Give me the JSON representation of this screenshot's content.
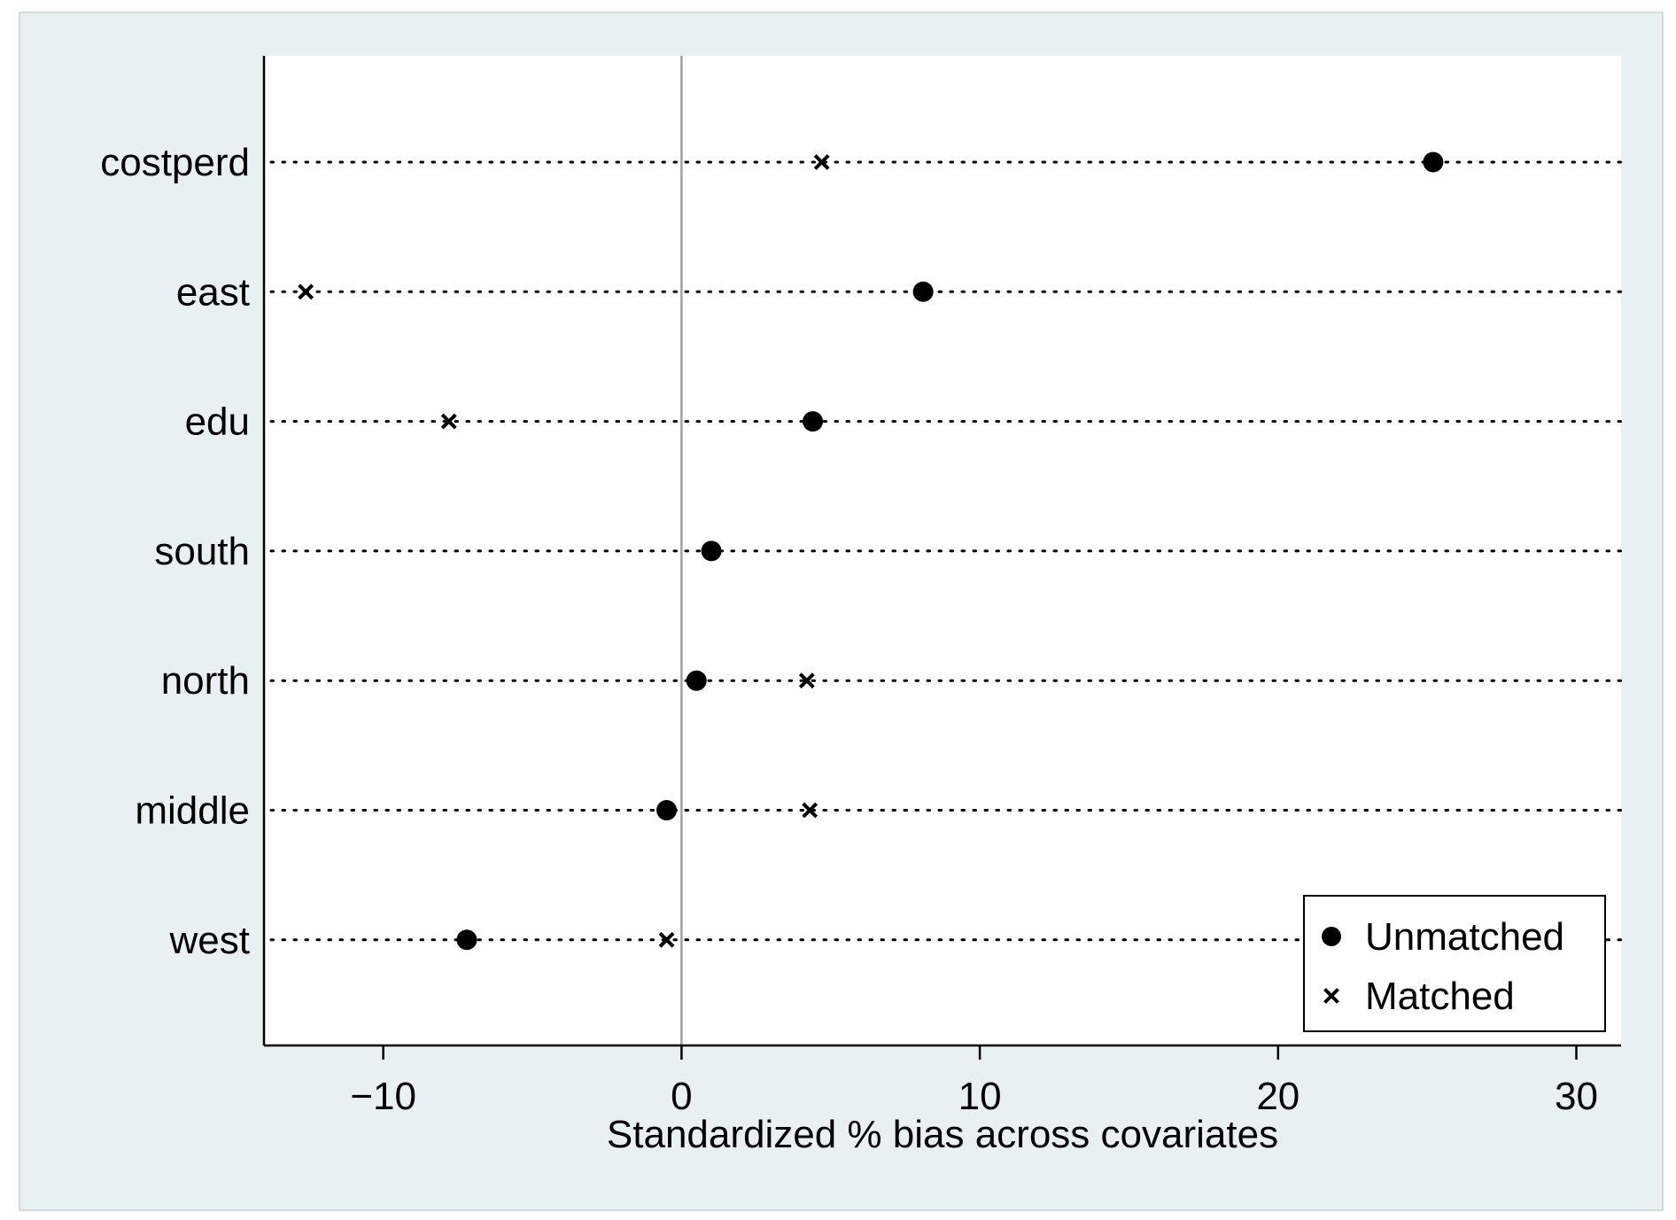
{
  "colors": {
    "frame_background": "#e9f0f1",
    "plot_background": "#ffffff",
    "marker": "#000000",
    "reference_line": "#a0a0a0"
  },
  "chart_data": {
    "type": "scatter",
    "title": "",
    "xlabel": "Standardized % bias across covariates",
    "ylabel": "",
    "xlim": [
      -14,
      31.5
    ],
    "xticks": [
      -10,
      0,
      10,
      20,
      30
    ],
    "xtick_labels": [
      "−10",
      "0",
      "10",
      "20",
      "30"
    ],
    "categories": [
      "costperd",
      "east",
      "edu",
      "south",
      "north",
      "middle",
      "west"
    ],
    "reference_line_x": 0,
    "grid": "dotted horizontal lines",
    "legend_position": "bottom-right",
    "series": [
      {
        "name": "Unmatched",
        "marker": "circle",
        "values": [
          25.2,
          8.1,
          4.4,
          1.0,
          0.5,
          -0.5,
          -7.2
        ]
      },
      {
        "name": "Matched",
        "marker": "x",
        "values": [
          4.7,
          -12.6,
          -7.8,
          null,
          4.2,
          4.3,
          -0.5
        ]
      }
    ]
  }
}
